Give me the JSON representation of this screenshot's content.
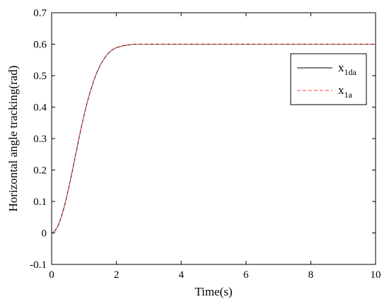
{
  "chart_data": {
    "type": "line",
    "title": "",
    "xlabel": "Time(s)",
    "ylabel": "Horizontal angle tracking(rad)",
    "xlim": [
      0,
      10
    ],
    "ylim": [
      -0.1,
      0.7
    ],
    "xticks": [
      0,
      2,
      4,
      6,
      8,
      10
    ],
    "yticks": [
      -0.1,
      0,
      0.1,
      0.2,
      0.3,
      0.4,
      0.5,
      0.6,
      0.7
    ],
    "xtick_labels": [
      "0",
      "2",
      "4",
      "6",
      "8",
      "10"
    ],
    "ytick_labels": [
      "-0.1",
      "0",
      "0.1",
      "0.2",
      "0.3",
      "0.4",
      "0.5",
      "0.6",
      "0.7"
    ],
    "grid": false,
    "legend_position": "top-right",
    "series": [
      {
        "name": "x1da",
        "name_main": "x",
        "name_sub": "1da",
        "color": "#000000",
        "dash": "solid",
        "x": [
          0,
          0.1,
          0.2,
          0.3,
          0.4,
          0.5,
          0.6,
          0.7,
          0.8,
          0.9,
          1.0,
          1.1,
          1.2,
          1.3,
          1.4,
          1.5,
          1.6,
          1.7,
          1.8,
          1.9,
          2.0,
          2.2,
          2.4,
          2.6,
          2.8,
          3,
          4,
          5,
          6,
          7,
          8,
          9,
          10
        ],
        "y": [
          0,
          0.006,
          0.023,
          0.051,
          0.087,
          0.13,
          0.178,
          0.228,
          0.279,
          0.328,
          0.374,
          0.416,
          0.452,
          0.484,
          0.511,
          0.533,
          0.551,
          0.565,
          0.576,
          0.584,
          0.589,
          0.595,
          0.598,
          0.6,
          0.6,
          0.6,
          0.6,
          0.6,
          0.6,
          0.6,
          0.6,
          0.6,
          0.6
        ]
      },
      {
        "name": "x1a",
        "name_main": "x",
        "name_sub": "1a",
        "color": "#ff3b3b",
        "dash": "dashed",
        "x": [
          0,
          0.1,
          0.2,
          0.3,
          0.4,
          0.5,
          0.6,
          0.7,
          0.8,
          0.9,
          1.0,
          1.1,
          1.2,
          1.3,
          1.4,
          1.5,
          1.6,
          1.7,
          1.8,
          1.9,
          2.0,
          2.2,
          2.4,
          2.6,
          2.8,
          3,
          4,
          5,
          6,
          7,
          8,
          9,
          10
        ],
        "y": [
          0,
          0.006,
          0.023,
          0.051,
          0.087,
          0.13,
          0.178,
          0.228,
          0.279,
          0.328,
          0.374,
          0.416,
          0.452,
          0.484,
          0.511,
          0.533,
          0.551,
          0.565,
          0.576,
          0.584,
          0.589,
          0.595,
          0.598,
          0.6,
          0.6,
          0.6,
          0.6,
          0.6,
          0.6,
          0.6,
          0.6,
          0.6,
          0.6
        ]
      }
    ]
  }
}
